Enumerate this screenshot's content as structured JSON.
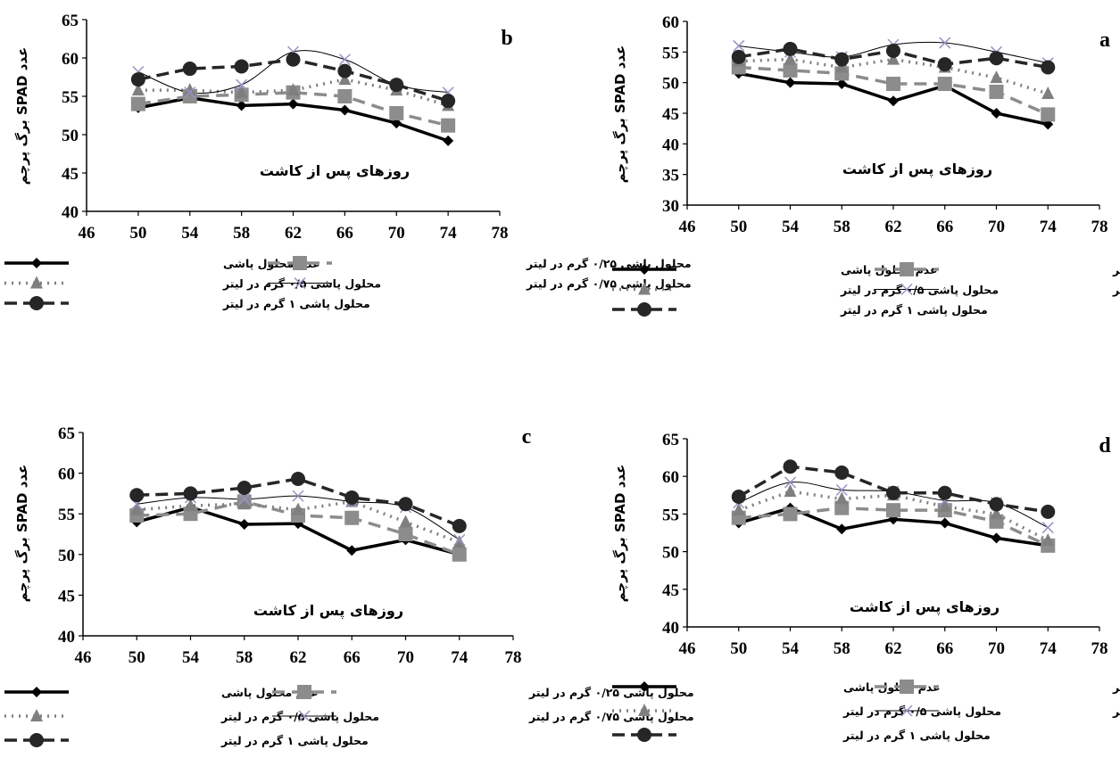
{
  "chart_data": [
    {
      "panel": "b",
      "type": "line",
      "xlabel": "روزهای پس از کاشت",
      "ylabel": "عدد SPAD برگ پرچم",
      "xlim": [
        46,
        78
      ],
      "ylim": [
        40,
        65
      ],
      "xticks": [
        46,
        50,
        54,
        58,
        62,
        66,
        70,
        74,
        78
      ],
      "yticks": [
        40,
        45,
        50,
        55,
        60,
        65
      ],
      "x": [
        50,
        54,
        58,
        62,
        66,
        70,
        74
      ],
      "series": [
        {
          "name": "عدم محلول پاشی",
          "values": [
            53.5,
            54.8,
            53.8,
            54.0,
            53.2,
            51.5,
            49.2
          ]
        },
        {
          "name": "محلول پاشی ۰/۲۵ گرم در لیتر",
          "values": [
            54.0,
            55.0,
            55.2,
            55.5,
            55.0,
            52.8,
            51.2
          ]
        },
        {
          "name": "محلول پاشی ۰/۵ گرم در لیتر",
          "values": [
            55.8,
            55.8,
            55.5,
            55.8,
            57.2,
            55.8,
            53.8
          ]
        },
        {
          "name": "محلول پاشی ۰/۷۵ گرم در لیتر",
          "values": [
            58.2,
            55.5,
            56.5,
            60.8,
            59.8,
            56.5,
            55.5
          ]
        },
        {
          "name": "محلول پاشی ۱ گرم در لیتر",
          "values": [
            57.2,
            58.6,
            58.9,
            59.8,
            58.3,
            56.5,
            54.4
          ]
        }
      ]
    },
    {
      "panel": "a",
      "type": "line",
      "xlabel": "روزهای پس از کاشت",
      "ylabel": "عدد SPAD برگ پرچم",
      "xlim": [
        46,
        78
      ],
      "ylim": [
        30,
        60
      ],
      "xticks": [
        46,
        50,
        54,
        58,
        62,
        66,
        70,
        74,
        78
      ],
      "yticks": [
        30,
        35,
        40,
        45,
        50,
        55,
        60
      ],
      "x": [
        50,
        54,
        58,
        62,
        66,
        70,
        74
      ],
      "series": [
        {
          "name": "عدم محلول پاشی",
          "values": [
            51.5,
            50.0,
            49.8,
            47.0,
            49.5,
            45.0,
            43.2
          ]
        },
        {
          "name": "محلول پاشی ۰/۲۵ گرم در لیتر",
          "values": [
            52.5,
            52.0,
            51.5,
            49.8,
            49.8,
            48.5,
            44.8
          ]
        },
        {
          "name": "محلول پاشی ۰/۵ گرم در لیتر",
          "values": [
            53.5,
            53.8,
            52.5,
            53.8,
            52.5,
            50.8,
            48.2
          ]
        },
        {
          "name": "محلول پاشی ۰/۷۵ گرم در لیتر",
          "values": [
            56.0,
            55.0,
            54.2,
            56.2,
            56.5,
            55.0,
            53.2
          ]
        },
        {
          "name": "محلول پاشی ۱ گرم در لیتر",
          "values": [
            54.2,
            55.5,
            53.8,
            55.2,
            53.0,
            54.0,
            52.5
          ]
        }
      ]
    },
    {
      "panel": "c",
      "type": "line",
      "xlabel": "روزهای پس از کاشت",
      "ylabel": "عدد SPAD برگ پرچم",
      "xlim": [
        46,
        78
      ],
      "ylim": [
        40,
        65
      ],
      "xticks": [
        46,
        50,
        54,
        58,
        62,
        66,
        70,
        74,
        78
      ],
      "yticks": [
        40,
        45,
        50,
        55,
        60,
        65
      ],
      "x": [
        50,
        54,
        58,
        62,
        66,
        70,
        74
      ],
      "series": [
        {
          "name": "عدم محلول پاشی",
          "values": [
            54.0,
            55.8,
            53.7,
            53.8,
            50.5,
            51.8,
            50.0
          ]
        },
        {
          "name": "محلول پاشی ۰/۲۵ گرم در لیتر",
          "values": [
            54.8,
            55.0,
            56.5,
            54.8,
            54.5,
            52.5,
            50.0
          ]
        },
        {
          "name": "محلول پاشی ۰/۵ گرم در لیتر",
          "values": [
            55.5,
            56.0,
            56.2,
            55.5,
            56.5,
            54.0,
            51.5
          ]
        },
        {
          "name": "محلول پاشی ۰/۷۵ گرم در لیتر",
          "values": [
            56.2,
            57.0,
            56.8,
            57.2,
            56.5,
            55.8,
            51.8
          ]
        },
        {
          "name": "محلول پاشی ۱ گرم در لیتر",
          "values": [
            57.3,
            57.5,
            58.2,
            59.3,
            57.0,
            56.2,
            53.5
          ]
        }
      ]
    },
    {
      "panel": "d",
      "type": "line",
      "xlabel": "روزهای پس از کاشت",
      "ylabel": "عدد SPAD برگ پرچم",
      "xlim": [
        46,
        78
      ],
      "ylim": [
        40,
        65
      ],
      "xticks": [
        46,
        50,
        54,
        58,
        62,
        66,
        70,
        74,
        78
      ],
      "yticks": [
        40,
        45,
        50,
        55,
        60,
        65
      ],
      "x": [
        50,
        54,
        58,
        62,
        66,
        70,
        74
      ],
      "series": [
        {
          "name": "عدم محلول پاشی",
          "values": [
            53.8,
            55.8,
            53.0,
            54.3,
            53.8,
            51.8,
            50.8
          ]
        },
        {
          "name": "محلول پاشی ۰/۲۵ گرم در لیتر",
          "values": [
            54.5,
            55.0,
            55.8,
            55.5,
            55.5,
            54.0,
            50.8
          ]
        },
        {
          "name": "محلول پاشی ۰/۵ گرم در لیتر",
          "values": [
            55.5,
            58.0,
            57.0,
            57.5,
            56.0,
            55.0,
            51.5
          ]
        },
        {
          "name": "محلول پاشی ۰/۷۵ گرم در لیتر",
          "values": [
            56.5,
            59.2,
            58.2,
            58.0,
            56.8,
            56.5,
            53.2
          ]
        },
        {
          "name": "محلول پاشی ۱ گرم در لیتر",
          "values": [
            57.3,
            61.3,
            60.5,
            57.8,
            57.8,
            56.3,
            55.3
          ]
        }
      ]
    }
  ],
  "series_styles": [
    {
      "color": "#000000",
      "marker": "diamond"
    },
    {
      "color": "#8c8c8c",
      "marker": "square"
    },
    {
      "color": "#7f7f7f",
      "marker": "triangle"
    },
    {
      "color": "#000000",
      "marker": "x",
      "marker_color": "#9d8fc4"
    },
    {
      "color": "#262626",
      "marker": "circle"
    }
  ]
}
